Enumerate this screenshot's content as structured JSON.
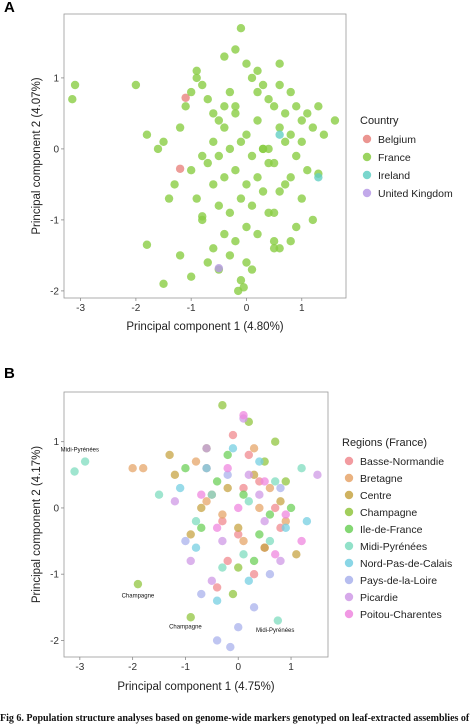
{
  "caption": "Fig 6. Population structure analyses based on genome-wide markers genotyped on leaf-extracted assemblies of",
  "chart_data": [
    {
      "type": "scatter",
      "panel_label": "A",
      "xlabel": "Principal component 1 (4.80%)",
      "ylabel": "Principal component 2 (4.07%)",
      "xlim": [
        -3.3,
        1.8
      ],
      "ylim": [
        -2.1,
        1.9
      ],
      "xticks": [
        -3,
        -2,
        -1,
        0,
        1
      ],
      "yticks": [
        -2,
        -1,
        0,
        1
      ],
      "grid": false,
      "legend_title": "Country",
      "legend_position": "right",
      "series": [
        {
          "name": "Belgium",
          "color": "#e8837e",
          "x": [
            -1.1,
            -1.2
          ],
          "y": [
            0.72,
            -0.28
          ]
        },
        {
          "name": "France",
          "color": "#8acd44",
          "x": [
            -3.1,
            -3.15,
            -2.0,
            -1.8,
            -1.6,
            -1.5,
            -1.2,
            -1.1,
            -1.0,
            -0.9,
            -0.8,
            -0.7,
            -0.6,
            -0.5,
            -0.4,
            -0.3,
            -0.2,
            -0.1,
            0.0,
            0.1,
            0.2,
            0.3,
            0.4,
            0.5,
            0.6,
            0.7,
            0.8,
            0.9,
            1.0,
            1.1,
            1.2,
            1.3,
            1.4,
            1.6,
            -1.3,
            -1.0,
            -0.8,
            -0.6,
            -0.4,
            -0.2,
            0.0,
            0.2,
            0.4,
            0.6,
            0.8,
            1.0,
            -0.7,
            -0.5,
            -0.3,
            -0.1,
            0.1,
            0.3,
            0.5,
            0.7,
            0.9,
            1.1,
            -0.9,
            -0.6,
            -0.4,
            -0.2,
            0.0,
            0.2,
            0.4,
            0.6,
            0.8,
            -0.5,
            -0.3,
            -0.1,
            0.1,
            0.3,
            0.5,
            0.7,
            -0.8,
            -0.4,
            0.0,
            0.4,
            0.8,
            1.2,
            -1.2,
            -0.6,
            -0.2,
            0.2,
            0.6,
            1.0,
            -0.7,
            -0.3,
            0.1,
            0.5,
            0.9,
            -1.5,
            -1.0,
            -0.5,
            0.0,
            0.5,
            -0.9,
            -0.4,
            0.2,
            0.6,
            -0.2,
            0.3,
            -0.1,
            -0.15,
            -0.05,
            -1.4,
            -1.8,
            -0.8,
            1.3
          ],
          "y": [
            0.9,
            0.7,
            0.9,
            0.2,
            0.0,
            0.1,
            0.3,
            0.6,
            0.8,
            1.1,
            0.9,
            0.7,
            0.5,
            0.4,
            0.6,
            0.8,
            1.4,
            1.7,
            1.2,
            1.0,
            0.8,
            0.9,
            0.7,
            0.6,
            0.9,
            0.5,
            0.8,
            0.6,
            0.4,
            0.5,
            0.3,
            0.6,
            0.2,
            0.4,
            -0.5,
            -0.3,
            -0.1,
            0.1,
            0.3,
            0.5,
            0.2,
            0.4,
            0.0,
            0.3,
            0.2,
            0.1,
            -0.2,
            -0.1,
            0.0,
            0.1,
            -0.1,
            0.0,
            -0.2,
            0.1,
            -0.1,
            -0.3,
            -0.7,
            -0.5,
            -0.4,
            -0.3,
            -0.5,
            -0.4,
            -0.2,
            -0.6,
            -0.4,
            -0.8,
            -0.9,
            -0.7,
            -0.8,
            -0.6,
            -0.9,
            -0.5,
            -1.0,
            -1.2,
            -1.1,
            -0.9,
            -1.3,
            -1.0,
            -1.5,
            -1.4,
            -1.3,
            -1.2,
            -1.4,
            -0.7,
            -1.6,
            -1.5,
            -1.7,
            -1.3,
            -1.1,
            -1.9,
            -1.8,
            -1.7,
            -1.6,
            -1.4,
            1.0,
            1.3,
            1.1,
            1.2,
            0.6,
            0.0,
            -1.85,
            -2.0,
            -1.95,
            -0.7,
            -1.35,
            -0.95,
            -0.35
          ],
          "opacity": 0.8
        },
        {
          "name": "Ireland",
          "color": "#63cfc4",
          "x": [
            1.3,
            0.6
          ],
          "y": [
            -0.4,
            0.2
          ]
        },
        {
          "name": "United Kingdom",
          "color": "#b79ae6",
          "x": [
            -0.5
          ],
          "y": [
            -1.68
          ]
        }
      ]
    },
    {
      "type": "scatter",
      "panel_label": "B",
      "xlabel": "Principal component 1 (4.75%)",
      "ylabel": "Principal component 2 (4.17%)",
      "xlim": [
        -3.3,
        1.7
      ],
      "ylim": [
        -2.25,
        1.75
      ],
      "xticks": [
        -3,
        -2,
        -1,
        0,
        1
      ],
      "yticks": [
        -2,
        -1,
        0,
        1
      ],
      "grid": false,
      "legend_title": "Regions (France)",
      "legend_position": "right",
      "annotations": [
        {
          "text": "Midi-Pyrénées",
          "x": -3.0,
          "y": 0.85
        },
        {
          "text": "Champagne",
          "x": -1.9,
          "y": -1.35
        },
        {
          "text": "Champagne",
          "x": -1.0,
          "y": -1.82
        },
        {
          "text": "Midi-Pyrénées",
          "x": 0.7,
          "y": -1.87
        }
      ],
      "series": [
        {
          "name": "Basse-Normandie",
          "color": "#f08a8f",
          "x": [
            -0.1,
            0.2,
            0.4,
            -0.5,
            0.7,
            -0.3,
            0.0,
            0.5,
            -0.2,
            0.3,
            -0.6,
            0.1,
            0.8,
            -0.4
          ],
          "y": [
            1.1,
            0.8,
            0.4,
            0.2,
            0.0,
            -0.2,
            -0.4,
            -0.6,
            -0.8,
            -1.0,
            0.6,
            0.3,
            -0.3,
            -1.2
          ]
        },
        {
          "name": "Bretagne",
          "color": "#e6a56a",
          "x": [
            -2.0,
            -1.8,
            -0.8,
            0.3,
            0.6,
            -0.3,
            0.1,
            0.9,
            -0.6,
            0.4
          ],
          "y": [
            0.6,
            0.6,
            0.7,
            0.9,
            0.3,
            -0.1,
            -0.5,
            -0.2,
            0.1,
            0.0
          ]
        },
        {
          "name": "Centre",
          "color": "#c7a444",
          "x": [
            -1.3,
            -1.2,
            -0.7,
            0.0,
            0.5,
            -0.2,
            0.8,
            -0.9,
            0.3,
            1.1
          ],
          "y": [
            0.8,
            0.5,
            0.0,
            -0.3,
            -0.6,
            0.3,
            0.1,
            -0.4,
            0.5,
            -0.7
          ]
        },
        {
          "name": "Champagne",
          "color": "#92c640",
          "x": [
            -1.9,
            -0.9,
            -0.3,
            0.2,
            -0.6,
            0.5,
            0.9,
            0.0,
            -0.1,
            0.7
          ],
          "y": [
            -1.15,
            -1.65,
            1.55,
            1.3,
            0.9,
            0.7,
            0.4,
            -0.9,
            -1.3,
            1.0
          ]
        },
        {
          "name": "Ile-de-France",
          "color": "#6ed05a",
          "x": [
            -1.0,
            -0.4,
            0.1,
            0.6,
            -0.7,
            0.3,
            1.0,
            -0.2,
            0.4
          ],
          "y": [
            0.6,
            0.4,
            0.2,
            -0.1,
            -0.3,
            -0.8,
            0.0,
            0.8,
            -0.4
          ]
        },
        {
          "name": "Midi-Pyrénées",
          "color": "#7fdcbf",
          "x": [
            -2.9,
            -3.1,
            0.75,
            -0.5,
            0.2,
            0.7,
            -0.8,
            0.1,
            0.6,
            -0.3,
            1.2,
            -1.5
          ],
          "y": [
            0.7,
            0.55,
            -1.7,
            0.2,
            0.1,
            0.4,
            -0.2,
            -0.7,
            -0.5,
            -0.9,
            0.6,
            0.2
          ]
        },
        {
          "name": "Nord-Pas-de-Calais",
          "color": "#75cfe2",
          "x": [
            -1.1,
            -0.6,
            -0.1,
            0.4,
            0.9,
            -0.8,
            0.2,
            -0.4,
            1.3
          ],
          "y": [
            0.3,
            0.6,
            0.9,
            0.7,
            -0.3,
            -0.6,
            -1.1,
            -1.4,
            -0.2
          ]
        },
        {
          "name": "Pays-de-la-Loire",
          "color": "#a9b1ec",
          "x": [
            -0.4,
            -0.15,
            0.0,
            -0.7,
            0.3,
            -1.0,
            0.6,
            -0.2,
            0.8
          ],
          "y": [
            -2.0,
            -2.1,
            -1.8,
            -1.3,
            -1.5,
            -0.5,
            -1.0,
            0.5,
            0.3
          ]
        },
        {
          "name": "Picardie",
          "color": "#cf9ae6",
          "x": [
            -0.6,
            -1.2,
            0.2,
            0.5,
            -0.3,
            0.8,
            1.5,
            -0.5,
            0.1,
            -0.9,
            0.4
          ],
          "y": [
            0.9,
            0.1,
            0.5,
            -0.2,
            -0.5,
            -0.8,
            0.5,
            -1.1,
            1.35,
            -0.8,
            0.2
          ]
        },
        {
          "name": "Poitou-Charentes",
          "color": "#ef87df",
          "x": [
            0.1,
            -0.2,
            0.5,
            -0.7,
            0.9,
            -0.4,
            0.7,
            0.0,
            1.2
          ],
          "y": [
            1.4,
            0.6,
            0.4,
            0.2,
            -0.1,
            -0.3,
            -0.7,
            0.0,
            -0.5
          ]
        }
      ],
      "opacity": 0.75
    }
  ]
}
